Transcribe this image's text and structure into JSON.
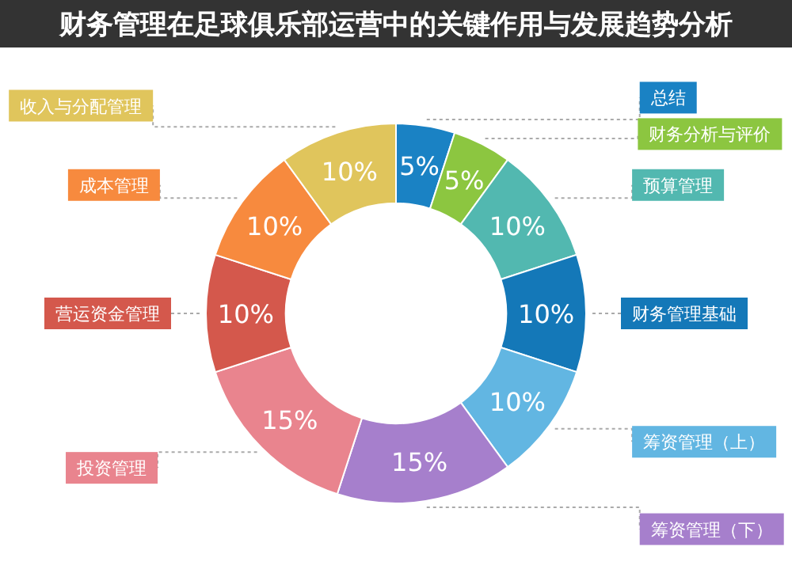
{
  "chart_data": {
    "type": "donut",
    "title": "财务管理在足球俱乐部运营中的关键作用与发展趋势分析",
    "categories": [
      "总结",
      "财务分析与评价",
      "预算管理",
      "财务管理基础",
      "筹资管理（上）",
      "筹资管理（下）",
      "投资管理",
      "营运资金管理",
      "成本管理",
      "收入与分配管理"
    ],
    "values": [
      5,
      5,
      10,
      10,
      10,
      15,
      15,
      10,
      10,
      10
    ],
    "value_labels": [
      "5%",
      "5%",
      "10%",
      "10%",
      "10%",
      "15%",
      "15%",
      "10%",
      "10%",
      "10%"
    ],
    "colors": [
      "#1a82c4",
      "#8cc640",
      "#52b8b0",
      "#1478b8",
      "#62b6e2",
      "#a67fcc",
      "#e9848e",
      "#d4584c",
      "#f78a3e",
      "#e0c55c"
    ]
  }
}
